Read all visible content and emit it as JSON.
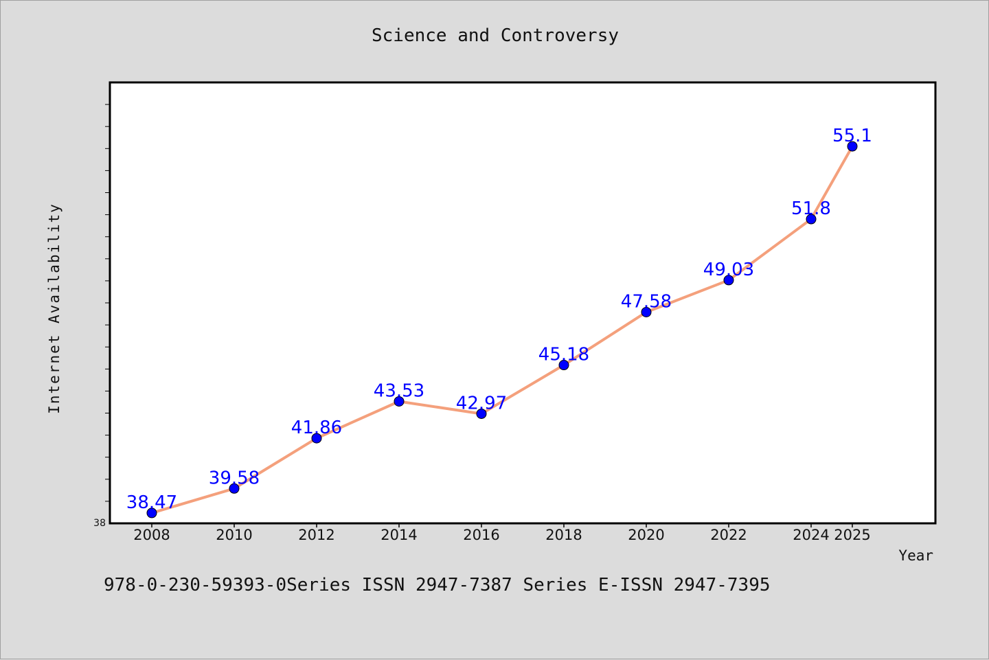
{
  "chart_data": {
    "type": "line",
    "title": "Science and Controversy",
    "xlabel": "Year",
    "ylabel": "Internet Availability",
    "x": [
      2008,
      2010,
      2012,
      2014,
      2016,
      2018,
      2020,
      2022,
      2024,
      2025
    ],
    "series": [
      {
        "values": [
          38.47,
          39.58,
          41.86,
          43.53,
          42.97,
          45.18,
          47.58,
          49.03,
          51.8,
          55.1
        ],
        "labels": [
          "38.47",
          "39.58",
          "41.86",
          "43.53",
          "42.97",
          "45.18",
          "47.58",
          "49.03",
          "51.8",
          "55.1"
        ],
        "line_color": "#f4a07c",
        "marker_color": "#0000ff"
      }
    ],
    "x_tick_labels": [
      "2008",
      "2010",
      "2012",
      "2014",
      "2016",
      "2018",
      "2020",
      "2022",
      "2024",
      "2025"
    ],
    "y_tick_label": "38",
    "ylim": [
      38,
      58
    ],
    "grid": false,
    "footer": "978-0-230-59393-0Series ISSN 2947-7387 Series E-ISSN 2947-7395"
  }
}
